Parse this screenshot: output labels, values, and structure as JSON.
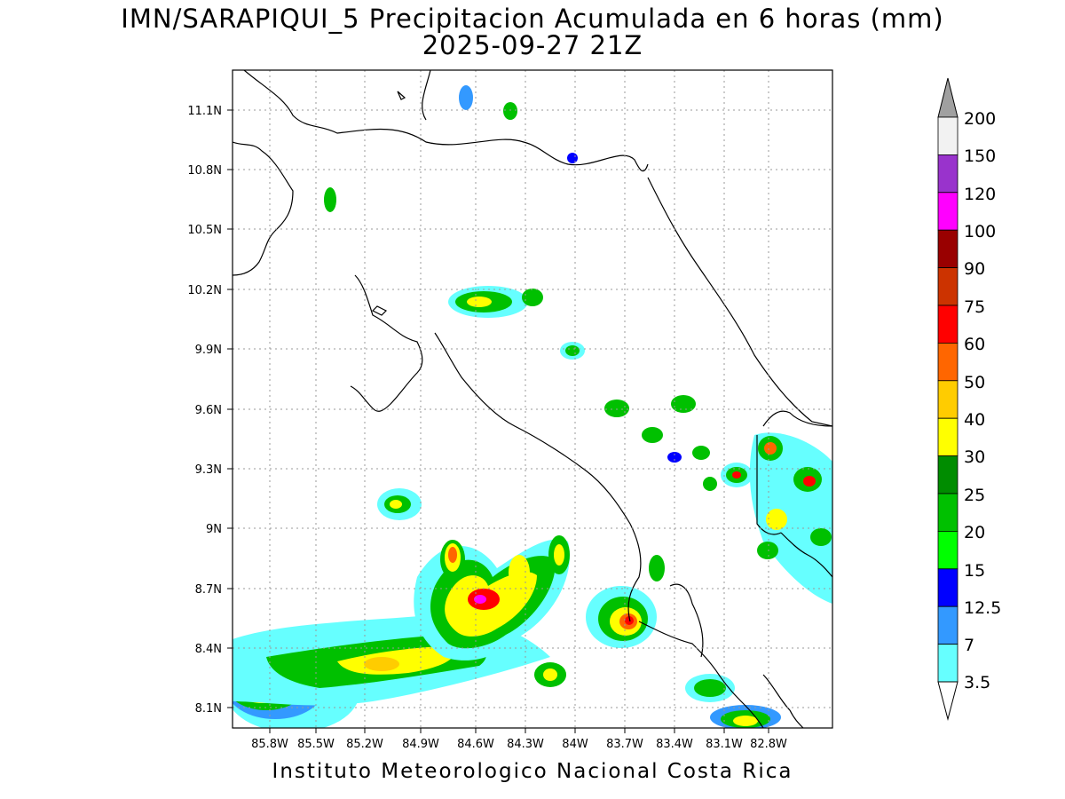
{
  "title_line1": "IMN/SARAPIQUI_5 Precipitacion Acumulada en 6 horas (mm)",
  "title_line2": "2025-09-27 21Z",
  "footer": "Instituto Meteorologico Nacional Costa Rica",
  "lat_ticks": [
    "11.1N",
    "10.8N",
    "10.5N",
    "10.2N",
    "9.9N",
    "9.6N",
    "9.3N",
    "9N",
    "8.7N",
    "8.4N",
    "8.1N"
  ],
  "lon_ticks": [
    "85.8W",
    "85.5W",
    "85.2W",
    "84.9W",
    "84.6W",
    "84.3W",
    "84W",
    "83.7W",
    "83.4W",
    "83.1W",
    "82.8W"
  ],
  "colorbar": {
    "labels": [
      "200",
      "150",
      "120",
      "100",
      "90",
      "75",
      "60",
      "50",
      "40",
      "30",
      "25",
      "20",
      "15",
      "12.5",
      "7",
      "3.5"
    ],
    "colors": [
      "#f2f2f2",
      "#9933cc",
      "#ff00ff",
      "#990000",
      "#cc3300",
      "#ff0000",
      "#ff6600",
      "#ffcc00",
      "#ffff00",
      "#008c00",
      "#00c000",
      "#00ff00",
      "#0000ff",
      "#3399ff",
      "#66ffff"
    ],
    "top_arrow_color": "#a0a0a0",
    "bottom_arrow_color": "#ffffff"
  }
}
